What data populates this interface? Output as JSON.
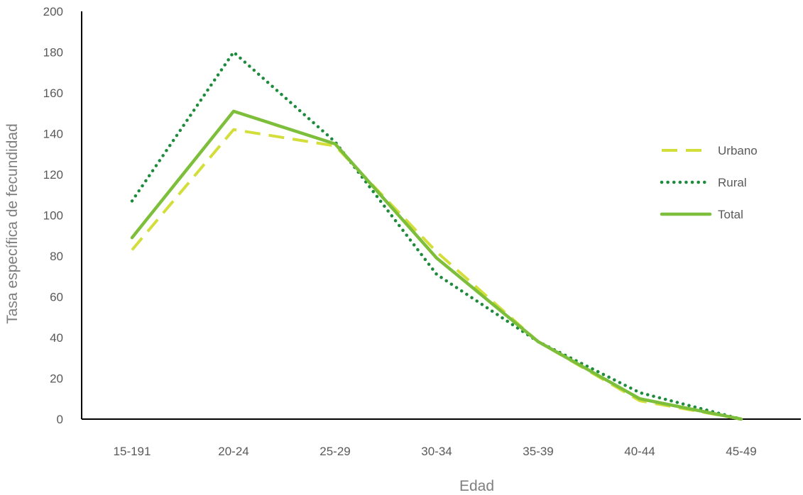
{
  "chart_data": {
    "type": "line",
    "title": "",
    "xlabel": "Edad",
    "ylabel": "Tasa específica de fecundidad",
    "categories": [
      "15-191",
      "20-24",
      "25-29",
      "30-34",
      "35-39",
      "40-44",
      "45-49"
    ],
    "ylim": [
      0,
      200
    ],
    "yticks": [
      0,
      20,
      40,
      60,
      80,
      100,
      120,
      140,
      160,
      180,
      200
    ],
    "grid": false,
    "legend_position": "right",
    "series": [
      {
        "name": "Urbano",
        "values": [
          83,
          142,
          134,
          82,
          38,
          9,
          0
        ],
        "color": "#d4de3a",
        "dash": "dashed"
      },
      {
        "name": "Rural",
        "values": [
          107,
          180,
          136,
          71,
          38,
          13,
          0
        ],
        "color": "#1e8a3c",
        "dash": "dotted"
      },
      {
        "name": "Total",
        "values": [
          89,
          151,
          135,
          79,
          38,
          10,
          0
        ],
        "color": "#7dbf3a",
        "dash": "solid"
      }
    ]
  }
}
